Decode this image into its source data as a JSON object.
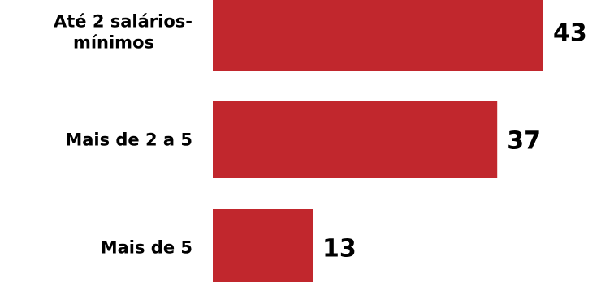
{
  "chart_data": {
    "type": "bar",
    "orientation": "horizontal",
    "categories": [
      [
        "Até 2 salários-",
        "mínimos"
      ],
      [
        "Mais de 2 a 5"
      ],
      [
        "Mais de 5"
      ]
    ],
    "values": [
      43,
      37,
      13
    ],
    "title": "",
    "xlabel": "",
    "ylabel": "",
    "xlim": [
      0,
      43
    ],
    "grid": false,
    "legend": "none",
    "bar_color": "#C1272D",
    "value_labels": [
      "43",
      "37",
      "13"
    ]
  }
}
